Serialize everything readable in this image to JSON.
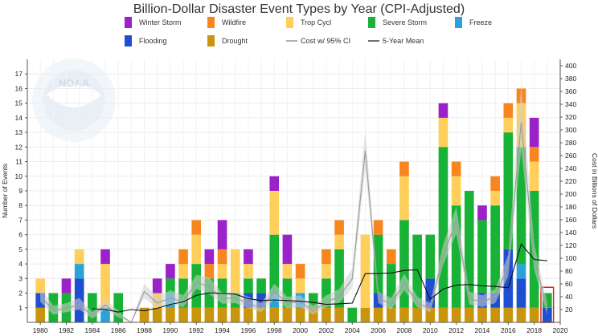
{
  "chart_data": {
    "type": "bar",
    "title": "Billion-Dollar Disaster Event Types by Year (CPI-Adjusted)",
    "ylabel_left": "Number of Events",
    "ylabel_right": "Cost in Billions of Dollars",
    "ylim_left": [
      0,
      18
    ],
    "ylim_right": [
      0,
      410
    ],
    "x_ticks": [
      1980,
      1982,
      1984,
      1986,
      1988,
      1990,
      1992,
      1994,
      1996,
      1998,
      2000,
      2002,
      2004,
      2006,
      2008,
      2010,
      2012,
      2014,
      2016,
      2018,
      2020
    ],
    "y_ticks_left": [
      1,
      2,
      3,
      4,
      5,
      6,
      7,
      8,
      9,
      10,
      11,
      12,
      13,
      14,
      15,
      16,
      17
    ],
    "y_ticks_right": [
      20,
      40,
      60,
      80,
      100,
      120,
      140,
      160,
      180,
      200,
      220,
      240,
      260,
      280,
      300,
      320,
      340,
      360,
      380,
      400
    ],
    "years": [
      1980,
      1981,
      1982,
      1983,
      1984,
      1985,
      1986,
      1987,
      1988,
      1989,
      1990,
      1991,
      1992,
      1993,
      1994,
      1995,
      1996,
      1997,
      1998,
      1999,
      2000,
      2001,
      2002,
      2003,
      2004,
      2005,
      2006,
      2007,
      2008,
      2009,
      2010,
      2011,
      2012,
      2013,
      2014,
      2015,
      2016,
      2017,
      2018,
      2019
    ],
    "stack_order": [
      "Drought",
      "Flooding",
      "Freeze",
      "Severe Storm",
      "Trop Cycl",
      "Wildfire",
      "Winter Storm"
    ],
    "colors": {
      "Drought": "#c9950c",
      "Flooding": "#1f4fd1",
      "Freeze": "#2aa3d8",
      "Severe Storm": "#18b336",
      "Trop Cycl": "#fecf5a",
      "Wildfire": "#f7861e",
      "Winter Storm": "#9b21c9",
      "Cost w/ 95% CI": "#b0b0b0",
      "5-Year Mean": "#111111",
      "current_year_box": "#e02020"
    },
    "series": [
      {
        "name": "Drought",
        "values": [
          1,
          0,
          0,
          0,
          0,
          0,
          0,
          0,
          1,
          1,
          1,
          1,
          1,
          1,
          1,
          1,
          1,
          1,
          1,
          1,
          1,
          1,
          1,
          1,
          0,
          1,
          1,
          1,
          1,
          1,
          1,
          1,
          1,
          1,
          1,
          1,
          1,
          1,
          1,
          0
        ]
      },
      {
        "name": "Flooding",
        "values": [
          1,
          0,
          0,
          3,
          0,
          0,
          0,
          0,
          0,
          0,
          0,
          0,
          0,
          0,
          0,
          0,
          1,
          1,
          0,
          0,
          0,
          0,
          0,
          0,
          0,
          0,
          1,
          0,
          0,
          0,
          2,
          0,
          0,
          0,
          1,
          1,
          4,
          2,
          0,
          1
        ]
      },
      {
        "name": "Freeze",
        "values": [
          0,
          0,
          0,
          1,
          0,
          1,
          0,
          0,
          0,
          0,
          1,
          0,
          0,
          0,
          0,
          0,
          0,
          0,
          1,
          0,
          1,
          0,
          0,
          0,
          0,
          0,
          0,
          0,
          0,
          0,
          0,
          0,
          0,
          0,
          0,
          0,
          0,
          1,
          0,
          0
        ]
      },
      {
        "name": "Severe Storm",
        "values": [
          0,
          2,
          2,
          0,
          2,
          0,
          2,
          0,
          0,
          0,
          1,
          2,
          3,
          2,
          2,
          1,
          1,
          1,
          4,
          2,
          0,
          1,
          2,
          4,
          1,
          0,
          4,
          3,
          6,
          5,
          3,
          11,
          7,
          8,
          5,
          6,
          8,
          8,
          8,
          1
        ]
      },
      {
        "name": "Trop Cycl",
        "values": [
          1,
          0,
          0,
          1,
          0,
          3,
          0,
          0,
          0,
          1,
          0,
          1,
          2,
          0,
          1,
          3,
          1,
          0,
          3,
          1,
          1,
          0,
          1,
          1,
          0,
          5,
          0,
          0,
          3,
          0,
          0,
          2,
          2,
          0,
          0,
          1,
          1,
          3,
          2,
          0
        ]
      },
      {
        "name": "Wildfire",
        "values": [
          0,
          0,
          0,
          0,
          0,
          0,
          0,
          0,
          0,
          0,
          0,
          1,
          1,
          1,
          1,
          0,
          0,
          0,
          0,
          0,
          1,
          0,
          1,
          1,
          0,
          0,
          1,
          1,
          1,
          0,
          0,
          0,
          1,
          0,
          0,
          1,
          1,
          1,
          1,
          0
        ]
      },
      {
        "name": "Winter Storm",
        "values": [
          0,
          0,
          1,
          0,
          0,
          1,
          0,
          0,
          0,
          1,
          1,
          0,
          0,
          1,
          2,
          0,
          1,
          0,
          1,
          2,
          0,
          0,
          0,
          0,
          0,
          0,
          0,
          0,
          0,
          0,
          0,
          1,
          0,
          0,
          1,
          0,
          0,
          0,
          2,
          0
        ]
      }
    ],
    "cost": [
      42,
      18,
      22,
      28,
      10,
      27,
      12,
      0,
      48,
      30,
      38,
      32,
      62,
      56,
      37,
      38,
      30,
      22,
      48,
      30,
      32,
      18,
      32,
      40,
      68,
      268,
      38,
      28,
      62,
      30,
      22,
      105,
      158,
      37,
      32,
      40,
      88,
      312,
      100,
      20
    ],
    "cost_ci_low": [
      32,
      12,
      16,
      20,
      6,
      20,
      8,
      0,
      38,
      22,
      28,
      24,
      52,
      44,
      29,
      30,
      22,
      16,
      36,
      22,
      24,
      12,
      24,
      30,
      54,
      240,
      30,
      20,
      50,
      24,
      16,
      90,
      138,
      28,
      24,
      30,
      72,
      270,
      82,
      12
    ],
    "cost_ci_high": [
      54,
      26,
      30,
      38,
      16,
      36,
      18,
      0,
      60,
      40,
      50,
      42,
      74,
      70,
      46,
      48,
      40,
      30,
      60,
      40,
      42,
      26,
      42,
      52,
      84,
      300,
      48,
      38,
      76,
      40,
      30,
      122,
      180,
      48,
      42,
      52,
      106,
      372,
      122,
      30
    ],
    "mean5": [
      null,
      null,
      null,
      null,
      21,
      20,
      16,
      20,
      18,
      22,
      28,
      32,
      42,
      46,
      45,
      44,
      37,
      34,
      35,
      34,
      33,
      31,
      28,
      29,
      30,
      76,
      76,
      77,
      81,
      82,
      36,
      52,
      58,
      59,
      57,
      56,
      54,
      122,
      98,
      96
    ],
    "current_year": 2019,
    "legend": [
      "Winter Storm",
      "Wildfire",
      "Trop Cycl",
      "Severe Storm",
      "Freeze",
      "Flooding",
      "Drought",
      "Cost w/ 95% CI",
      "5-Year Mean"
    ]
  }
}
